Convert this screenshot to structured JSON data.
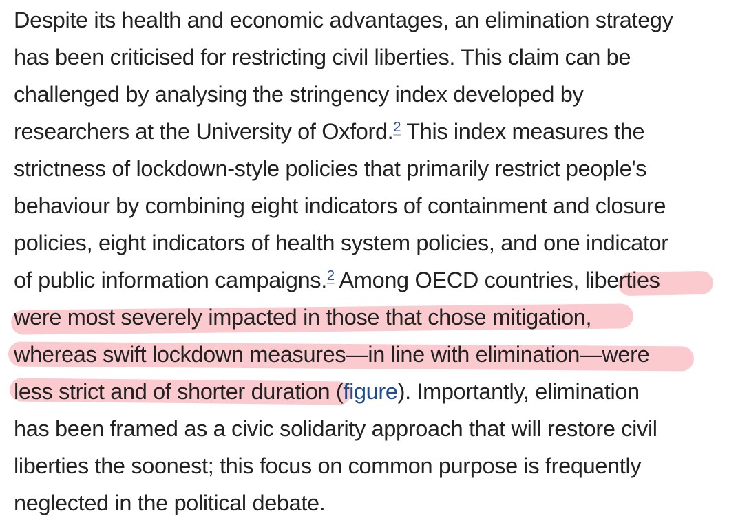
{
  "paragraph": {
    "lines": [
      "Despite its health and economic advantages, an elimination strategy",
      "has been criticised for restricting civil liberties. This claim can be",
      "challenged by analysing the stringency index developed by",
      "researchers at the University of Oxford.",
      " This index measures the",
      "strictness of lockdown-style policies that primarily restrict people's",
      "behaviour by combining eight indicators of containment and closure",
      "policies, eight indicators of health system policies, and one indicator",
      "of public information campaigns.",
      " Among OECD countries, ",
      "liberties",
      "were most severely impacted in those that chose mitigation,",
      "whereas swift lockdown measures—in line with elimination—were",
      "less strict and of shorter duration",
      " (",
      "figure",
      "). Importantly, elimination",
      "has been framed as a civic solidarity approach that will restore civil",
      "liberties the soonest; this focus on common purpose is frequently",
      "neglected in the political debate."
    ],
    "ref_a": "2",
    "ref_b": "2"
  },
  "highlight_color": "#f2808a",
  "link_color": "#1d4d8c"
}
